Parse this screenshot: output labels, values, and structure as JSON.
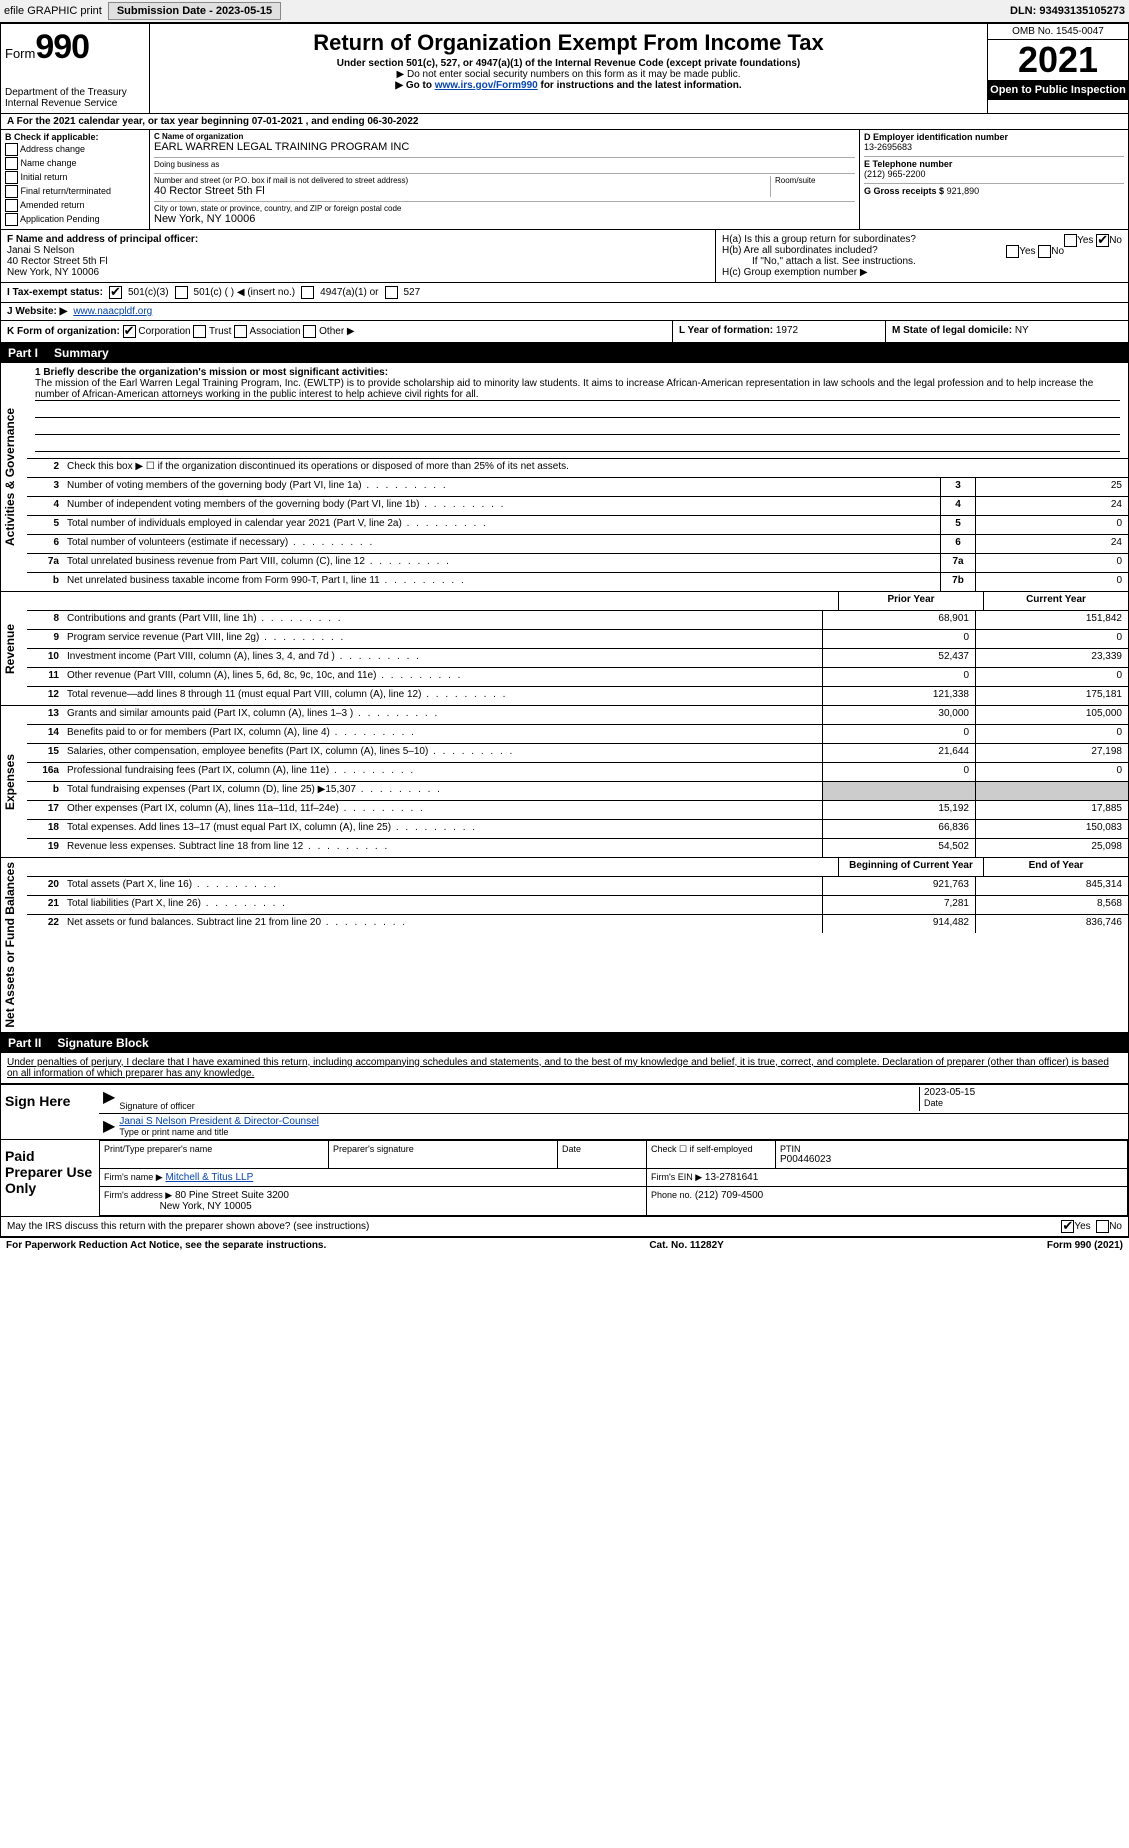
{
  "topbar": {
    "efile": "efile GRAPHIC print",
    "submission_btn": "Submission Date - 2023-05-15",
    "dln": "DLN: 93493135105273"
  },
  "header": {
    "form_word": "Form",
    "form_no": "990",
    "dept1": "Department of the Treasury",
    "dept2": "Internal Revenue Service",
    "title": "Return of Organization Exempt From Income Tax",
    "subtitle": "Under section 501(c), 527, or 4947(a)(1) of the Internal Revenue Code (except private foundations)",
    "note1": "▶ Do not enter social security numbers on this form as it may be made public.",
    "note2_pre": "▶ Go to ",
    "note2_link": "www.irs.gov/Form990",
    "note2_post": " for instructions and the latest information.",
    "omb": "OMB No. 1545-0047",
    "year": "2021",
    "openpub": "Open to Public Inspection"
  },
  "A": {
    "text": "For the 2021 calendar year, or tax year beginning 07-01-2021   , and ending 06-30-2022"
  },
  "B": {
    "label": "B Check if applicable:",
    "opts": [
      "Address change",
      "Name change",
      "Initial return",
      "Final return/terminated",
      "Amended return",
      "Application Pending"
    ]
  },
  "C": {
    "name_label": "C Name of organization",
    "name": "EARL WARREN LEGAL TRAINING PROGRAM INC",
    "dba_label": "Doing business as",
    "dba": "",
    "street_label": "Number and street (or P.O. box if mail is not delivered to street address)",
    "room_label": "Room/suite",
    "street": "40 Rector Street 5th Fl",
    "city_label": "City or town, state or province, country, and ZIP or foreign postal code",
    "city": "New York, NY  10006"
  },
  "D": {
    "label": "D Employer identification number",
    "val": "13-2695683"
  },
  "E": {
    "label": "E Telephone number",
    "val": "(212) 965-2200"
  },
  "G": {
    "label": "G Gross receipts $",
    "val": "921,890"
  },
  "F": {
    "label": "F  Name and address of principal officer:",
    "name": "Janai S Nelson",
    "addr1": "40 Rector Street 5th Fl",
    "addr2": "New York, NY  10006"
  },
  "H": {
    "a": "H(a)  Is this a group return for subordinates?",
    "a_yes": "Yes",
    "a_no": "No",
    "b": "H(b)  Are all subordinates included?",
    "b_yes": "Yes",
    "b_no": "No",
    "b_note": "If \"No,\" attach a list. See instructions.",
    "c": "H(c)  Group exemption number ▶"
  },
  "I": {
    "label": "I   Tax-exempt status:",
    "o1": "501(c)(3)",
    "o2": "501(c) (   ) ◀ (insert no.)",
    "o3": "4947(a)(1) or",
    "o4": "527"
  },
  "J": {
    "label": "J   Website: ▶",
    "val": "www.naacpldf.org"
  },
  "K": {
    "label": "K Form of organization:",
    "o1": "Corporation",
    "o2": "Trust",
    "o3": "Association",
    "o4": "Other ▶"
  },
  "L": {
    "label": "L Year of formation:",
    "val": "1972"
  },
  "M": {
    "label": "M State of legal domicile:",
    "val": "NY"
  },
  "partI": {
    "tag": "Part I",
    "title": "Summary",
    "line1_label": "1  Briefly describe the organization's mission or most significant activities:",
    "mission": "The mission of the Earl Warren Legal Training Program, Inc. (EWLTP) is to provide scholarship aid to minority law students. It aims to increase African-American representation in law schools and the legal profession and to help increase the number of African-American attorneys working in the public interest to help achieve civil rights for all.",
    "line2": "Check this box ▶ ☐  if the organization discontinued its operations or disposed of more than 25% of its net assets.",
    "gov_label": "Activities & Governance",
    "rev_label": "Revenue",
    "exp_label": "Expenses",
    "net_label": "Net Assets or Fund Balances",
    "rows_gov": [
      {
        "n": "3",
        "d": "Number of voting members of the governing body (Part VI, line 1a)",
        "c": "3",
        "v": "25"
      },
      {
        "n": "4",
        "d": "Number of independent voting members of the governing body (Part VI, line 1b)",
        "c": "4",
        "v": "24"
      },
      {
        "n": "5",
        "d": "Total number of individuals employed in calendar year 2021 (Part V, line 2a)",
        "c": "5",
        "v": "0"
      },
      {
        "n": "6",
        "d": "Total number of volunteers (estimate if necessary)",
        "c": "6",
        "v": "24"
      },
      {
        "n": "7a",
        "d": "Total unrelated business revenue from Part VIII, column (C), line 12",
        "c": "7a",
        "v": "0"
      },
      {
        "n": "b",
        "d": "Net unrelated business taxable income from Form 990-T, Part I, line 11",
        "c": "7b",
        "v": "0"
      }
    ],
    "col_prior": "Prior Year",
    "col_curr": "Current Year",
    "rows_rev": [
      {
        "n": "8",
        "d": "Contributions and grants (Part VIII, line 1h)",
        "p": "68,901",
        "c": "151,842"
      },
      {
        "n": "9",
        "d": "Program service revenue (Part VIII, line 2g)",
        "p": "0",
        "c": "0"
      },
      {
        "n": "10",
        "d": "Investment income (Part VIII, column (A), lines 3, 4, and 7d )",
        "p": "52,437",
        "c": "23,339"
      },
      {
        "n": "11",
        "d": "Other revenue (Part VIII, column (A), lines 5, 6d, 8c, 9c, 10c, and 11e)",
        "p": "0",
        "c": "0"
      },
      {
        "n": "12",
        "d": "Total revenue—add lines 8 through 11 (must equal Part VIII, column (A), line 12)",
        "p": "121,338",
        "c": "175,181"
      }
    ],
    "rows_exp": [
      {
        "n": "13",
        "d": "Grants and similar amounts paid (Part IX, column (A), lines 1–3 )",
        "p": "30,000",
        "c": "105,000"
      },
      {
        "n": "14",
        "d": "Benefits paid to or for members (Part IX, column (A), line 4)",
        "p": "0",
        "c": "0"
      },
      {
        "n": "15",
        "d": "Salaries, other compensation, employee benefits (Part IX, column (A), lines 5–10)",
        "p": "21,644",
        "c": "27,198"
      },
      {
        "n": "16a",
        "d": "Professional fundraising fees (Part IX, column (A), line 11e)",
        "p": "0",
        "c": "0"
      },
      {
        "n": "b",
        "d": "Total fundraising expenses (Part IX, column (D), line 25) ▶15,307",
        "p": "",
        "c": "",
        "gray": true
      },
      {
        "n": "17",
        "d": "Other expenses (Part IX, column (A), lines 11a–11d, 11f–24e)",
        "p": "15,192",
        "c": "17,885"
      },
      {
        "n": "18",
        "d": "Total expenses. Add lines 13–17 (must equal Part IX, column (A), line 25)",
        "p": "66,836",
        "c": "150,083"
      },
      {
        "n": "19",
        "d": "Revenue less expenses. Subtract line 18 from line 12",
        "p": "54,502",
        "c": "25,098"
      }
    ],
    "col_begin": "Beginning of Current Year",
    "col_end": "End of Year",
    "rows_net": [
      {
        "n": "20",
        "d": "Total assets (Part X, line 16)",
        "p": "921,763",
        "c": "845,314"
      },
      {
        "n": "21",
        "d": "Total liabilities (Part X, line 26)",
        "p": "7,281",
        "c": "8,568"
      },
      {
        "n": "22",
        "d": "Net assets or fund balances. Subtract line 21 from line 20",
        "p": "914,482",
        "c": "836,746"
      }
    ]
  },
  "partII": {
    "tag": "Part II",
    "title": "Signature Block",
    "decl": "Under penalties of perjury, I declare that I have examined this return, including accompanying schedules and statements, and to the best of my knowledge and belief, it is true, correct, and complete. Declaration of preparer (other than officer) is based on all information of which preparer has any knowledge.",
    "sign_here": "Sign Here",
    "sig_officer": "Signature of officer",
    "sig_date": "Date",
    "sig_date_val": "2023-05-15",
    "type_name": "Janai S Nelson  President & Director-Counsel",
    "type_label": "Type or print name and title",
    "paid": "Paid Preparer Use Only",
    "prep_name_h": "Print/Type preparer's name",
    "prep_sig_h": "Preparer's signature",
    "prep_date_h": "Date",
    "prep_check": "Check ☐ if self-employed",
    "ptin_h": "PTIN",
    "ptin": "P00446023",
    "firm_name_l": "Firm's name    ▶",
    "firm_name": "Mitchell & Titus LLP",
    "firm_ein_l": "Firm's EIN ▶",
    "firm_ein": "13-2781641",
    "firm_addr_l": "Firm's address ▶",
    "firm_addr1": "80 Pine Street Suite 3200",
    "firm_addr2": "New York, NY  10005",
    "phone_l": "Phone no.",
    "phone": "(212) 709-4500",
    "discuss": "May the IRS discuss this return with the preparer shown above? (see instructions)",
    "d_yes": "Yes",
    "d_no": "No"
  },
  "footer": {
    "left": "For Paperwork Reduction Act Notice, see the separate instructions.",
    "mid": "Cat. No. 11282Y",
    "right": "Form 990 (2021)"
  }
}
